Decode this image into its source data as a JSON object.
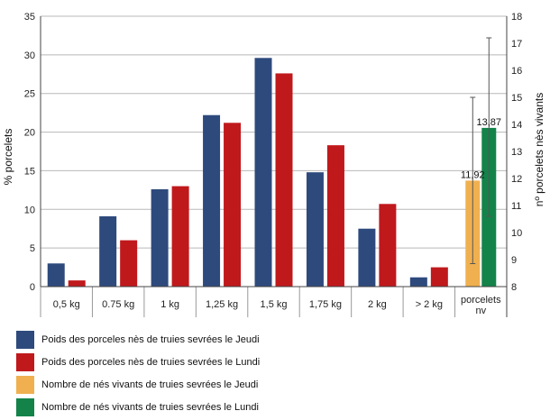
{
  "chart_data": {
    "type": "bar",
    "ylabel_left": "% porcelets",
    "ylabel_right": "nº porcelets nès vivants",
    "ylim_left": [
      0,
      35
    ],
    "ylim_right": [
      8,
      18
    ],
    "yticks_left": [
      "0",
      "5",
      "10",
      "15",
      "20",
      "25",
      "30",
      "35"
    ],
    "yticks_right": [
      "8",
      "9",
      "10",
      "11",
      "12",
      "13",
      "14",
      "15",
      "16",
      "17",
      "18"
    ],
    "grid": true,
    "categories": [
      "0,5 kg",
      "0.75 kg",
      "1 kg",
      "1,25 kg",
      "1,5 kg",
      "1,75 kg",
      "2 kg",
      "> 2 kg"
    ],
    "series": [
      {
        "name": "Poids des porceles nès de truies sevrées le Jeudi",
        "color": "#2e4a7d",
        "axis": "left",
        "values": [
          3.0,
          9.1,
          12.6,
          22.2,
          29.6,
          14.8,
          7.5,
          1.2
        ]
      },
      {
        "name": "Poids des porceles nès de truies sevrées le Lundi",
        "color": "#c0191c",
        "axis": "left",
        "values": [
          0.8,
          6.0,
          13.0,
          21.2,
          27.6,
          18.3,
          10.7,
          2.5
        ]
      }
    ],
    "extra_category": {
      "label_line1": "porcelets",
      "label_line2": "nv"
    },
    "right_series": [
      {
        "name": "Nombre de nés vivants de truies sevrées le Jeudi",
        "color": "#f0b050",
        "value": 11.92,
        "label": "11,92",
        "err_low": 8.85,
        "err_high": 15.0
      },
      {
        "name": "Nombre de nés vivants de truies sevrées le Lundi",
        "color": "#13834a",
        "value": 13.87,
        "label": "13,87",
        "err_low": 10.6,
        "err_high": 17.2
      }
    ],
    "legend": "bottom-left"
  }
}
